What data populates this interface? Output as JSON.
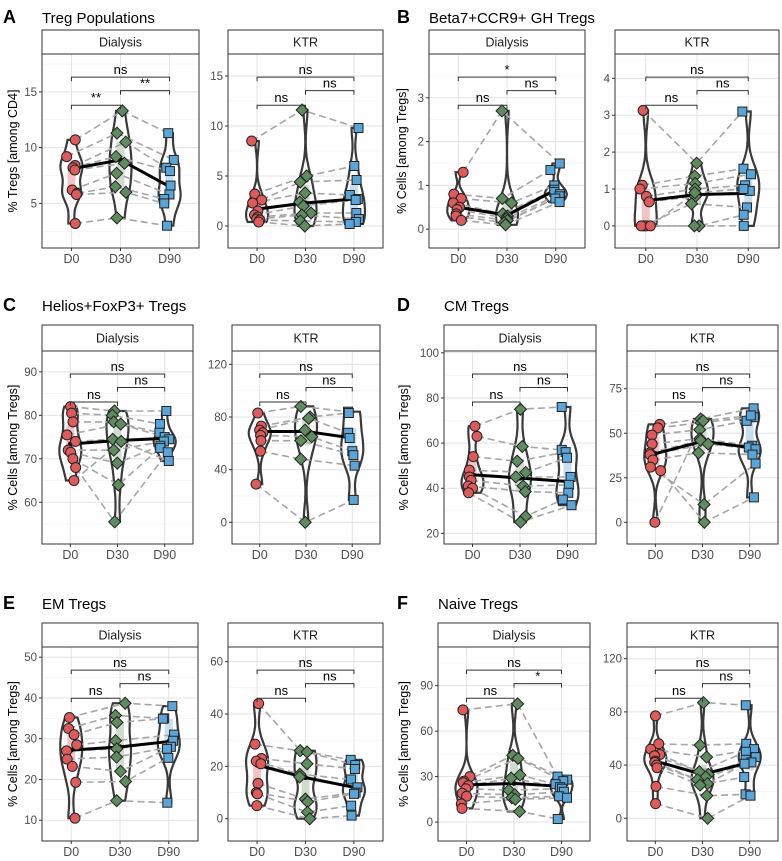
{
  "colors": {
    "D0": "#e05a5c",
    "D30": "#5e8c5f",
    "D90": "#5aa5d8",
    "D0_fill": "#f2c4c4",
    "D30_fill": "#cfdccd",
    "D90_fill": "#c7dff0",
    "mean_line": "#000000",
    "paired_line": "#a6a6a6"
  },
  "chart_data": [
    {
      "type": "violin",
      "letter": "A",
      "title": "Treg Populations",
      "ylabel": "% Tregs [among CD4]",
      "categories": [
        "D0",
        "D30",
        "D90"
      ],
      "facets": [
        {
          "label": "Dialysis",
          "ylim": [
            1.0,
            18.4
          ],
          "ticks": [
            5,
            10,
            15
          ],
          "groups": {
            "D0": [
              10.7,
              9.2,
              8.4,
              8.2,
              8.0,
              6.2,
              5.9,
              5.8,
              3.2
            ],
            "D30": [
              13.3,
              11.3,
              10.5,
              9.2,
              8.6,
              7.7,
              6.5,
              6.0,
              3.7
            ],
            "D90": [
              11.3,
              8.9,
              8.2,
              7.9,
              6.6,
              5.8,
              5.4,
              5.0,
              3.0
            ]
          },
          "means": [
            8.1,
            8.9,
            6.5
          ],
          "significance": [
            "**",
            "**",
            "ns"
          ]
        },
        {
          "label": "KTR",
          "ylim": [
            -2.2,
            17.2
          ],
          "ticks": [
            0,
            5,
            10,
            15
          ],
          "groups": {
            "D0": [
              8.5,
              3.2,
              2.6,
              2.3,
              1.5,
              1.1,
              0.9,
              0.7,
              0.6,
              0.4
            ],
            "D30": [
              11.6,
              5.0,
              4.4,
              3.3,
              2.4,
              2.0,
              1.3,
              1.1,
              0.5,
              0.0
            ],
            "D90": [
              9.8,
              6.0,
              4.6,
              3.1,
              2.7,
              2.6,
              1.3,
              0.7,
              0.4,
              0.2
            ]
          },
          "means": [
            1.7,
            2.3,
            2.7
          ],
          "significance": [
            "ns",
            "ns",
            "ns"
          ]
        }
      ]
    },
    {
      "type": "violin",
      "letter": "B",
      "title": "Beta7+CCR9+ GH Tregs",
      "ylabel": "% Cells [among Tregs]",
      "categories": [
        "D0",
        "D30",
        "D90"
      ],
      "facets": [
        {
          "label": "Dialysis",
          "ylim": [
            -0.43,
            4.0
          ],
          "ticks": [
            0,
            1,
            2,
            3
          ],
          "groups": {
            "D0": [
              1.3,
              0.8,
              0.7,
              0.6,
              0.5,
              0.45,
              0.35,
              0.3,
              0.2
            ],
            "D30": [
              2.7,
              0.7,
              0.6,
              0.35,
              0.3,
              0.25,
              0.2,
              0.15,
              0.1
            ],
            "D90": [
              1.5,
              1.35,
              1.0,
              0.9,
              0.85,
              0.8,
              0.75,
              0.7,
              0.62
            ]
          },
          "means": [
            0.5,
            0.32,
            0.9
          ],
          "significance": [
            "ns",
            "ns",
            "*"
          ]
        },
        {
          "label": "KTR",
          "ylim": [
            -0.6,
            4.66
          ],
          "ticks": [
            0,
            1,
            2,
            3,
            4
          ],
          "groups": {
            "D0": [
              3.13,
              1.1,
              1.0,
              0.8,
              0.65,
              0,
              0,
              0,
              0
            ],
            "D30": [
              1.7,
              1.35,
              1.15,
              1.0,
              0.8,
              0.6,
              0,
              0,
              0.9
            ],
            "D90": [
              3.1,
              1.55,
              1.4,
              1.1,
              0.95,
              0.5,
              0.3,
              0,
              1.0
            ]
          },
          "means": [
            0.68,
            0.85,
            0.88
          ],
          "significance": [
            "ns",
            "ns",
            "ns"
          ]
        }
      ]
    },
    {
      "type": "violin",
      "letter": "C",
      "title": "Helios+FoxP3+ Tregs",
      "ylabel": "% Cells [among Tregs]",
      "categories": [
        "D0",
        "D30",
        "D90"
      ],
      "facets": [
        {
          "label": "Dialysis",
          "ylim": [
            50.4,
            94.8
          ],
          "ticks": [
            60,
            70,
            80,
            90
          ],
          "groups": {
            "D0": [
              82,
              80.5,
              78.5,
              75.5,
              74,
              72,
              71.5,
              70,
              68,
              65
            ],
            "D30": [
              81,
              80,
              78.5,
              78,
              74.5,
              72,
              69,
              64,
              55.5,
              74
            ],
            "D90": [
              81,
              78,
              76,
              75,
              74.5,
              74,
              73,
              72.5,
              71.5,
              69.5
            ]
          },
          "means": [
            73.4,
            74.2,
            74.7
          ],
          "significance": [
            "ns",
            "ns",
            "ns"
          ]
        },
        {
          "label": "KTR",
          "ylim": [
            -16.5,
            130.1
          ],
          "ticks": [
            0,
            40,
            80,
            120
          ],
          "groups": {
            "D0": [
              83,
              73,
              70,
              68,
              66,
              62,
              54,
              29
            ],
            "D30": [
              88,
              80,
              79,
              70,
              65,
              62,
              48,
              0
            ],
            "D90": [
              84,
              83,
              68,
              64,
              54,
              51,
              43,
              17
            ]
          },
          "means": [
            69,
            69,
            64
          ],
          "significance": [
            "ns",
            "ns",
            "ns"
          ]
        }
      ]
    },
    {
      "type": "violin",
      "letter": "D",
      "title": "CM Tregs",
      "ylabel": "% Cells [among Tregs]",
      "categories": [
        "D0",
        "D30",
        "D90"
      ],
      "facets": [
        {
          "label": "Dialysis",
          "ylim": [
            15.3,
            100.8
          ],
          "ticks": [
            20,
            40,
            60,
            80,
            100
          ],
          "groups": {
            "D0": [
              67.5,
              63,
              54,
              48,
              45,
              43.5,
              41,
              40,
              38
            ],
            "D30": [
              75,
              58.5,
              52,
              47,
              45,
              41,
              38.5,
              27.5,
              25
            ],
            "D90": [
              76,
              57,
              56,
              53.5,
              45,
              41.5,
              38,
              35,
              32.5
            ]
          },
          "means": [
            46,
            44.5,
            43
          ],
          "significance": [
            "ns",
            "ns",
            "ns"
          ]
        },
        {
          "label": "KTR",
          "ylim": [
            -12.2,
            96.2
          ],
          "ticks": [
            0,
            25,
            50,
            75
          ],
          "groups": {
            "D0": [
              55,
              53,
              49,
              44,
              39,
              38,
              35,
              31,
              29,
              0
            ],
            "D30": [
              58,
              56,
              52,
              47,
              46,
              44,
              39,
              10,
              0,
              57
            ],
            "D90": [
              64,
              59,
              57,
              43,
              42,
              41,
              38,
              33,
              14,
              60
            ]
          },
          "means": [
            38.5,
            45.5,
            42
          ],
          "significance": [
            "ns",
            "ns",
            "ns"
          ]
        }
      ]
    },
    {
      "type": "violin",
      "letter": "E",
      "title": "EM Tregs",
      "ylabel": "% Cells [among Tregs]",
      "categories": [
        "D0",
        "D30",
        "D90"
      ],
      "facets": [
        {
          "label": "Dialysis",
          "ylim": [
            4.9,
            52.5
          ],
          "ticks": [
            10,
            20,
            30,
            40,
            50
          ],
          "groups": {
            "D0": [
              35.2,
              32.5,
              31,
              28.5,
              27,
              25,
              23.2,
              19.3,
              10.5
            ],
            "D30": [
              38.7,
              35.7,
              34,
              29.5,
              27.5,
              25.5,
              22,
              19.5,
              14.8
            ],
            "D90": [
              38,
              35,
              34.9,
              31,
              29.5,
              28,
              27.5,
              25.3,
              14.3
            ]
          },
          "means": [
            27.2,
            28,
            29.3
          ],
          "significance": [
            "ns",
            "ns",
            "ns"
          ]
        },
        {
          "label": "KTR",
          "ylim": [
            -8.5,
            65.6
          ],
          "ticks": [
            0,
            20,
            40,
            60
          ],
          "groups": {
            "D0": [
              44,
              28.5,
              23,
              22,
              21,
              13.5,
              10,
              9.5,
              5
            ],
            "D30": [
              26,
              25.5,
              21,
              17,
              16,
              7.5,
              6.5,
              2.5,
              0
            ],
            "D90": [
              22.5,
              20.5,
              19,
              15,
              12,
              10,
              9.5,
              5,
              1.2
            ]
          },
          "means": [
            20.5,
            15.7,
            12
          ],
          "significance": [
            "ns",
            "ns",
            "ns"
          ]
        }
      ]
    },
    {
      "type": "violin",
      "letter": "F",
      "title": "Naive Tregs",
      "ylabel": "% Cells [among Tregs]",
      "categories": [
        "D0",
        "D30",
        "D90"
      ],
      "facets": [
        {
          "label": "Dialysis",
          "ylim": [
            -12.5,
            115.5
          ],
          "ticks": [
            0,
            30,
            60,
            90
          ],
          "groups": {
            "D0": [
              74,
              30,
              27,
              26,
              24,
              22,
              19,
              17,
              12,
              9
            ],
            "D30": [
              78,
              44,
              42,
              31,
              29,
              21,
              18,
              16,
              15,
              7
            ],
            "D90": [
              30,
              28,
              27,
              25,
              23,
              22,
              20,
              17,
              16,
              2
            ]
          },
          "means": [
            24.5,
            25.5,
            23.5
          ],
          "significance": [
            "ns",
            "*",
            "ns"
          ]
        },
        {
          "label": "KTR",
          "ylim": [
            -17.1,
            128.8
          ],
          "ticks": [
            0,
            40,
            80,
            120
          ],
          "groups": {
            "D0": [
              77,
              56,
              52,
              48,
              47,
              43,
              42,
              40,
              38,
              24,
              11
            ],
            "D30": [
              87,
              55,
              46,
              35,
              33,
              31,
              29,
              26,
              25,
              17,
              0
            ],
            "D90": [
              85,
              56,
              52,
              50,
              46,
              44,
              42,
              41,
              31,
              18,
              17
            ]
          },
          "means": [
            43,
            33,
            42
          ],
          "significance": [
            "ns",
            "ns",
            "ns"
          ]
        }
      ]
    }
  ]
}
